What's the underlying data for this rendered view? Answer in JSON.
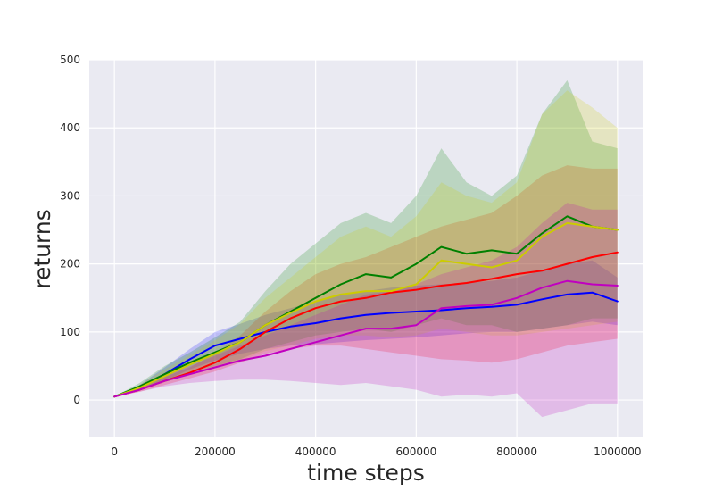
{
  "chart_data": {
    "type": "line",
    "title": "",
    "xlabel": "time steps",
    "ylabel": "returns",
    "xlim": [
      -50000,
      1050000
    ],
    "ylim": [
      -55,
      500
    ],
    "x_ticks": [
      0,
      200000,
      400000,
      600000,
      800000,
      1000000
    ],
    "x_tick_labels": [
      "0",
      "200000",
      "400000",
      "600000",
      "800000",
      "1000000"
    ],
    "y_ticks": [
      0,
      100,
      200,
      300,
      400,
      500
    ],
    "y_tick_labels": [
      "0",
      "100",
      "200",
      "300",
      "400",
      "500"
    ],
    "grid": true,
    "legend": "none",
    "x": [
      0,
      50000,
      100000,
      150000,
      200000,
      250000,
      300000,
      350000,
      400000,
      450000,
      500000,
      550000,
      600000,
      650000,
      700000,
      750000,
      800000,
      850000,
      900000,
      950000,
      1000000
    ],
    "series": [
      {
        "color": "#0000ff",
        "mean": [
          5,
          18,
          38,
          60,
          80,
          90,
          100,
          108,
          113,
          120,
          125,
          128,
          130,
          132,
          135,
          137,
          140,
          148,
          155,
          158,
          145
        ],
        "lower": [
          5,
          14,
          28,
          45,
          58,
          68,
          75,
          80,
          82,
          85,
          88,
          90,
          92,
          95,
          98,
          100,
          100,
          105,
          110,
          115,
          110
        ],
        "upper": [
          5,
          22,
          48,
          75,
          100,
          112,
          125,
          135,
          145,
          155,
          160,
          165,
          168,
          170,
          172,
          175,
          180,
          190,
          200,
          205,
          180
        ]
      },
      {
        "color": "#ff0000",
        "mean": [
          5,
          15,
          28,
          40,
          55,
          75,
          100,
          120,
          135,
          145,
          150,
          158,
          162,
          168,
          172,
          178,
          185,
          190,
          200,
          210,
          217
        ],
        "lower": [
          5,
          12,
          22,
          32,
          42,
          55,
          68,
          75,
          80,
          80,
          75,
          70,
          65,
          60,
          58,
          55,
          60,
          70,
          80,
          85,
          90
        ],
        "upper": [
          5,
          18,
          34,
          48,
          68,
          95,
          130,
          160,
          185,
          200,
          210,
          225,
          240,
          255,
          265,
          275,
          300,
          330,
          345,
          340,
          340
        ]
      },
      {
        "color": "#008000",
        "mean": [
          5,
          20,
          38,
          55,
          70,
          85,
          110,
          130,
          150,
          170,
          185,
          180,
          200,
          225,
          215,
          220,
          215,
          245,
          270,
          255,
          250
        ],
        "lower": [
          5,
          15,
          28,
          40,
          50,
          60,
          75,
          85,
          95,
          100,
          105,
          100,
          110,
          120,
          110,
          110,
          100,
          105,
          110,
          120,
          120
        ],
        "upper": [
          5,
          25,
          50,
          70,
          92,
          115,
          160,
          200,
          230,
          260,
          275,
          260,
          300,
          370,
          320,
          300,
          330,
          420,
          470,
          380,
          370
        ]
      },
      {
        "color": "#cccc00",
        "mean": [
          5,
          18,
          35,
          52,
          68,
          85,
          110,
          128,
          145,
          155,
          160,
          160,
          170,
          205,
          200,
          195,
          205,
          240,
          260,
          255,
          250
        ],
        "lower": [
          5,
          14,
          26,
          38,
          48,
          58,
          72,
          80,
          90,
          95,
          95,
          92,
          95,
          105,
          100,
          95,
          95,
          100,
          105,
          110,
          115
        ],
        "upper": [
          5,
          22,
          45,
          66,
          88,
          112,
          150,
          180,
          210,
          240,
          255,
          240,
          270,
          320,
          300,
          290,
          320,
          420,
          455,
          430,
          400
        ]
      },
      {
        "color": "#c000c0",
        "mean": [
          5,
          15,
          28,
          38,
          48,
          58,
          65,
          75,
          85,
          95,
          105,
          105,
          110,
          135,
          138,
          140,
          150,
          165,
          175,
          170,
          168
        ],
        "lower": [
          5,
          12,
          20,
          25,
          28,
          30,
          30,
          28,
          25,
          22,
          25,
          20,
          15,
          5,
          8,
          5,
          10,
          -25,
          -15,
          -5,
          -5
        ],
        "upper": [
          5,
          18,
          35,
          50,
          65,
          80,
          95,
          110,
          125,
          140,
          155,
          160,
          170,
          185,
          195,
          205,
          225,
          260,
          290,
          280,
          280
        ]
      }
    ]
  }
}
